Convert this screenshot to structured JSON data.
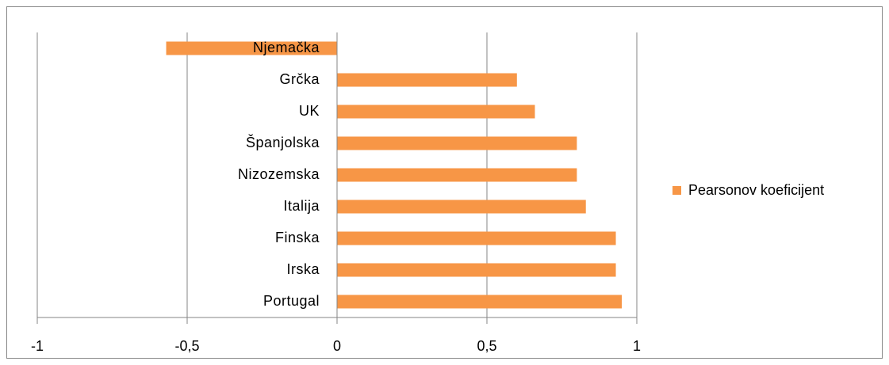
{
  "chart_data": {
    "type": "bar",
    "orientation": "horizontal",
    "categories": [
      "Njemačka",
      "Grčka",
      "UK",
      "Španjolska",
      "Nizozemska",
      "Italija",
      "Finska",
      "Irska",
      "Portugal"
    ],
    "series": [
      {
        "name": "Pearsonov koeficijent",
        "color": "#f79646",
        "values": [
          -0.57,
          0.6,
          0.66,
          0.8,
          0.8,
          0.83,
          0.93,
          0.93,
          0.95
        ]
      }
    ],
    "xlim": [
      -1,
      1
    ],
    "xticks": [
      -1,
      {
        "value": -0.5,
        "label": "-0,5"
      },
      0,
      {
        "value": 0.5,
        "label": "0,5"
      },
      1
    ],
    "grid": true,
    "legend": "right"
  }
}
